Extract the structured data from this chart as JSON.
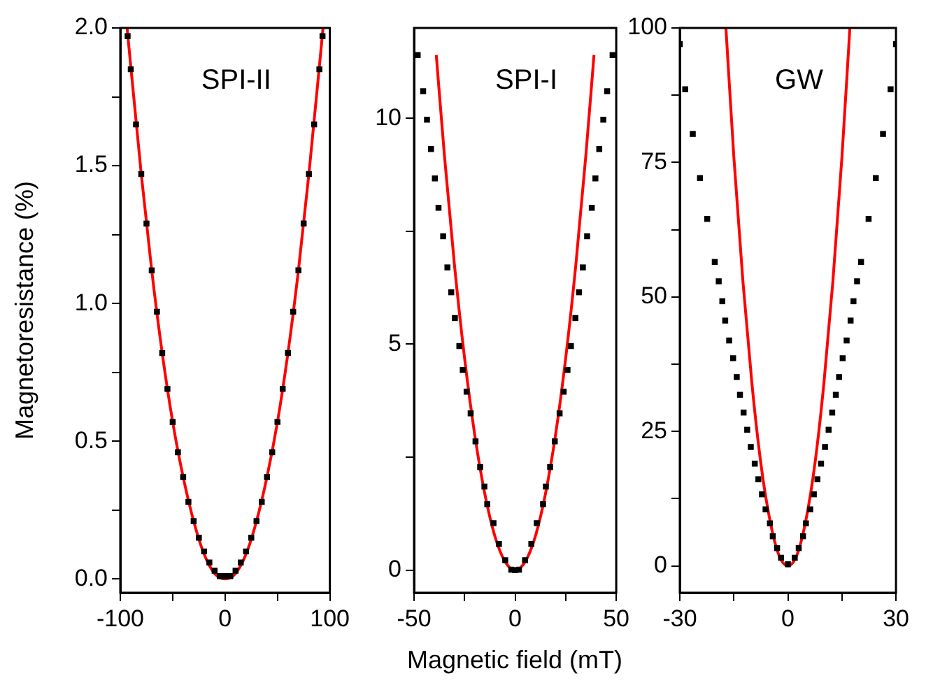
{
  "chart_data": [
    {
      "type": "scatter",
      "title": "SPI-II",
      "ylabel": "Magnetoresistance (%)",
      "xlim": [
        -100,
        100
      ],
      "ylim": [
        -0.05,
        2.0
      ],
      "grid": false,
      "legend": false,
      "xticks": [
        -100,
        {
          "value": -50,
          "label": null
        },
        0,
        {
          "value": 50,
          "label": null
        },
        100
      ],
      "yticks": [
        {
          "value": 0,
          "label": "0.0"
        },
        {
          "value": 0.25,
          "label": null
        },
        {
          "value": 0.5,
          "label": "0.5"
        },
        {
          "value": 0.75,
          "label": null
        },
        {
          "value": 1,
          "label": "1.0"
        },
        {
          "value": 1.25,
          "label": null
        },
        {
          "value": 1.5,
          "label": "1.5"
        },
        {
          "value": 1.75,
          "label": null
        },
        {
          "value": 2,
          "label": "2.0"
        }
      ],
      "series": [
        {
          "type": "scatter",
          "color": "#000000",
          "marker": "square",
          "x": [
            -93,
            -90,
            -85,
            -80,
            -75,
            -70,
            -65,
            -60,
            -55,
            -50,
            -45,
            -40,
            -35,
            -30,
            -25,
            -20,
            -15,
            -10,
            -5,
            0,
            5,
            10,
            15,
            20,
            25,
            30,
            35,
            40,
            45,
            50,
            55,
            60,
            65,
            70,
            75,
            80,
            85,
            90,
            93
          ],
          "values": [
            1.97,
            1.85,
            1.65,
            1.47,
            1.29,
            1.12,
            0.97,
            0.82,
            0.69,
            0.57,
            0.46,
            0.37,
            0.28,
            0.21,
            0.15,
            0.1,
            0.06,
            0.03,
            0.01,
            0.01,
            0.01,
            0.03,
            0.06,
            0.1,
            0.15,
            0.21,
            0.28,
            0.37,
            0.46,
            0.57,
            0.69,
            0.82,
            0.97,
            1.12,
            1.29,
            1.47,
            1.65,
            1.85,
            1.97
          ]
        },
        {
          "type": "line",
          "color": "#ff0000",
          "marker": "none",
          "line_style": "solid",
          "x": [
            -93.5,
            -80,
            -70,
            -60,
            -50,
            -40,
            -30,
            -20,
            -10,
            0,
            10,
            20,
            30,
            40,
            50,
            60,
            70,
            80,
            93.5
          ],
          "values": [
            2.0,
            1.47,
            1.12,
            0.82,
            0.57,
            0.37,
            0.21,
            0.09,
            0.02,
            0,
            0.02,
            0.09,
            0.21,
            0.37,
            0.57,
            0.82,
            1.12,
            1.47,
            2.0
          ]
        }
      ]
    },
    {
      "type": "scatter",
      "title": "SPI-I",
      "xlabel": "Magnetic field (mT)",
      "xlim": [
        -50,
        50
      ],
      "ylim": [
        -0.5,
        12
      ],
      "grid": false,
      "legend": false,
      "xticks": [
        -50,
        {
          "value": -25,
          "label": null
        },
        0,
        {
          "value": 25,
          "label": null
        },
        50
      ],
      "yticks": [
        0,
        {
          "value": 2.5,
          "label": null
        },
        5,
        {
          "value": 7.5,
          "label": null
        },
        10
      ],
      "series": [
        {
          "type": "scatter",
          "color": "#000000",
          "marker": "square",
          "x": [
            -48.2,
            -45.5,
            -43.6,
            -41.6,
            -39.7,
            -37.9,
            -35.6,
            -33.5,
            -31.6,
            -29.8,
            -27.6,
            -25.9,
            -24.0,
            -22.0,
            -19.6,
            -17.3,
            -15.2,
            -13.8,
            -10.7,
            -8.0,
            -4.9,
            -1.9,
            0,
            1.9,
            4.9,
            8.0,
            10.7,
            13.8,
            15.2,
            17.3,
            19.6,
            22.0,
            24.0,
            25.9,
            27.6,
            29.8,
            31.6,
            33.5,
            35.6,
            37.9,
            39.7,
            41.6,
            43.6,
            45.5,
            48.2
          ],
          "values": [
            11.4,
            10.6,
            9.97,
            9.32,
            8.67,
            8.02,
            7.39,
            6.7,
            6.15,
            5.58,
            4.96,
            4.43,
            3.95,
            3.47,
            2.85,
            2.28,
            1.85,
            1.46,
            1.04,
            0.58,
            0.22,
            0.01,
            0.0,
            0.01,
            0.22,
            0.58,
            1.04,
            1.46,
            1.85,
            2.28,
            2.85,
            3.47,
            3.95,
            4.43,
            4.96,
            5.58,
            6.15,
            6.7,
            7.39,
            8.02,
            8.67,
            9.32,
            9.97,
            10.6,
            11.4
          ]
        },
        {
          "type": "line",
          "color": "#ff0000",
          "marker": "none",
          "line_style": "solid",
          "x": [
            -39,
            -35,
            -30,
            -25,
            -20,
            -15,
            -10,
            -5,
            0,
            5,
            10,
            15,
            20,
            25,
            30,
            35,
            39
          ],
          "values": [
            11.4,
            9.19,
            6.75,
            4.69,
            3.0,
            1.69,
            0.75,
            0.19,
            0,
            0.19,
            0.75,
            1.69,
            3.0,
            4.69,
            6.75,
            9.19,
            11.4
          ]
        }
      ]
    },
    {
      "type": "scatter",
      "title": "GW",
      "xlim": [
        -30,
        30
      ],
      "ylim": [
        -5,
        100
      ],
      "grid": false,
      "legend": false,
      "xticks": [
        -30,
        {
          "value": -15,
          "label": null
        },
        0,
        {
          "value": 15,
          "label": null
        },
        30
      ],
      "yticks": [
        0,
        {
          "value": 12.5,
          "label": null
        },
        25,
        {
          "value": 37.5,
          "label": null
        },
        50,
        {
          "value": 62.5,
          "label": null
        },
        75,
        {
          "value": 87.5,
          "label": null
        },
        100
      ],
      "series": [
        {
          "type": "scatter",
          "color": "#000000",
          "marker": "square",
          "x": [
            -30,
            -28.5,
            -26.4,
            -24.4,
            -22.4,
            -20.3,
            -19.2,
            -18.2,
            -17.4,
            -16.3,
            -15.2,
            -14.2,
            -13.3,
            -12.3,
            -11.3,
            -10.3,
            -9.2,
            -8.2,
            -7.2,
            -6.2,
            -5.0,
            -4.2,
            -3.0,
            -1.9,
            0,
            1.9,
            3.0,
            4.2,
            5.0,
            6.2,
            7.2,
            8.2,
            9.2,
            10.3,
            11.3,
            12.3,
            13.3,
            14.2,
            15.2,
            16.3,
            17.4,
            18.2,
            19.2,
            20.3,
            22.4,
            24.4,
            26.4,
            28.5,
            30
          ],
          "values": [
            97.0,
            88.6,
            80.3,
            72.1,
            64.5,
            56.5,
            52.9,
            49.2,
            45.6,
            41.9,
            38.6,
            35.1,
            31.8,
            28.5,
            25.3,
            22.1,
            19.0,
            16.1,
            13.3,
            10.5,
            7.9,
            5.5,
            3.3,
            1.5,
            0.3,
            1.5,
            3.3,
            5.5,
            7.9,
            10.5,
            13.3,
            16.1,
            19.0,
            22.1,
            25.3,
            28.5,
            31.8,
            35.1,
            38.6,
            41.9,
            45.6,
            49.2,
            52.9,
            56.5,
            64.5,
            72.1,
            80.3,
            88.6,
            97.0
          ]
        },
        {
          "type": "line",
          "color": "#ff0000",
          "marker": "none",
          "line_style": "solid",
          "x": [
            -17.2,
            -15,
            -12.5,
            -10,
            -7.5,
            -5,
            -2.5,
            0,
            2.5,
            5,
            7.5,
            10,
            12.5,
            15,
            17.2
          ],
          "values": [
            100,
            76,
            53,
            34,
            19,
            8.5,
            2,
            0,
            2,
            8.5,
            19,
            34,
            53,
            76,
            100
          ]
        }
      ]
    }
  ]
}
